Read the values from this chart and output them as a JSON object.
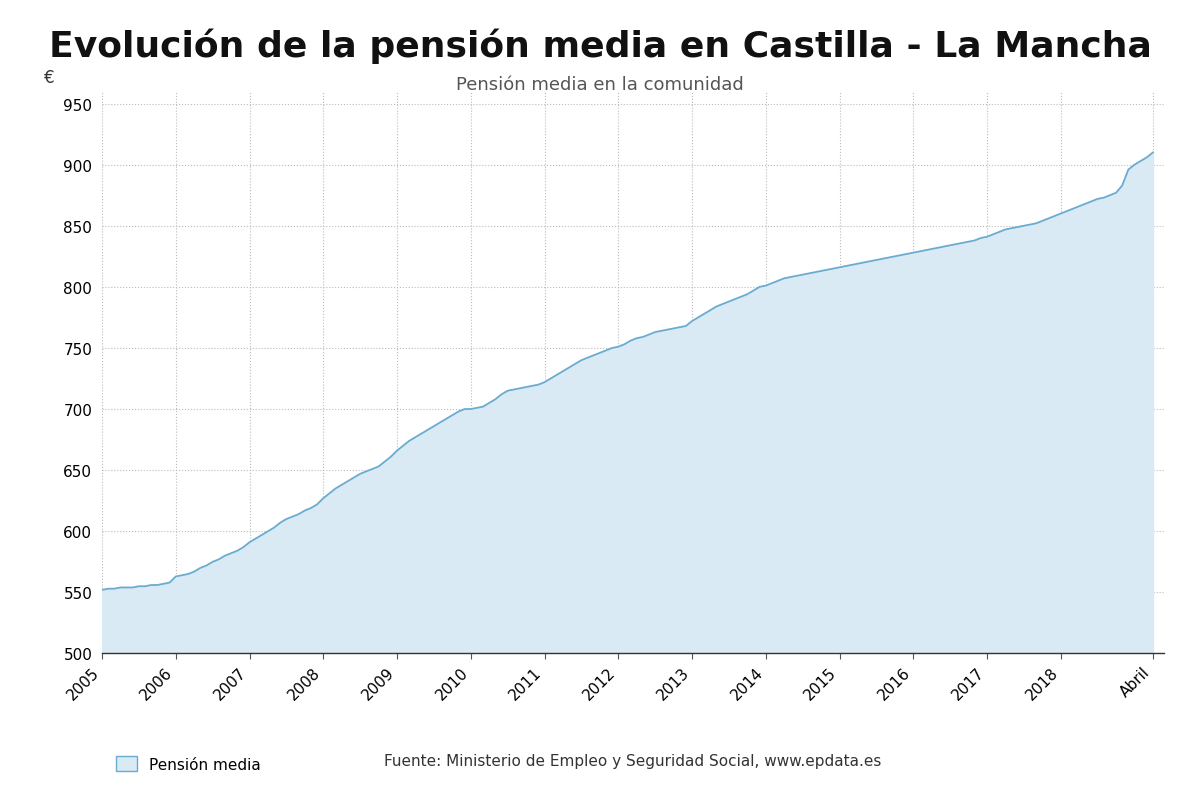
{
  "title": "Evolución de la pensión media en Castilla - La Mancha",
  "subtitle": "Pensión media en la comunidad",
  "ylabel": "€",
  "legend_label": "Pensión media",
  "source_text": "Fuente: Ministerio de Empleo y Seguridad Social, www.epdata.es",
  "ylim": [
    500,
    960
  ],
  "yticks": [
    500,
    550,
    600,
    650,
    700,
    750,
    800,
    850,
    900,
    950
  ],
  "line_color": "#6aacd0",
  "fill_color": "#daeaf5",
  "background_color": "#ffffff",
  "grid_color": "#bbbbbb",
  "title_fontsize": 26,
  "subtitle_fontsize": 13,
  "tick_fontsize": 11,
  "monthly_values": [
    552,
    553,
    553,
    554,
    554,
    554,
    555,
    555,
    556,
    556,
    557,
    558,
    563,
    564,
    565,
    567,
    570,
    572,
    575,
    577,
    580,
    582,
    584,
    587,
    591,
    594,
    597,
    600,
    603,
    607,
    610,
    612,
    614,
    617,
    619,
    622,
    627,
    631,
    635,
    638,
    641,
    644,
    647,
    649,
    651,
    653,
    657,
    661,
    666,
    670,
    674,
    677,
    680,
    683,
    686,
    689,
    692,
    695,
    698,
    700,
    700,
    701,
    702,
    705,
    708,
    712,
    715,
    716,
    717,
    718,
    719,
    720,
    722,
    725,
    728,
    731,
    734,
    737,
    740,
    742,
    744,
    746,
    748,
    750,
    751,
    753,
    756,
    758,
    759,
    761,
    763,
    764,
    765,
    766,
    767,
    768,
    772,
    775,
    778,
    781,
    784,
    786,
    788,
    790,
    792,
    794,
    797,
    800,
    801,
    803,
    805,
    807,
    808,
    809,
    810,
    811,
    812,
    813,
    814,
    815,
    816,
    817,
    818,
    819,
    820,
    821,
    822,
    823,
    824,
    825,
    826,
    827,
    828,
    829,
    830,
    831,
    832,
    833,
    834,
    835,
    836,
    837,
    838,
    840,
    841,
    843,
    845,
    847,
    848,
    849,
    850,
    851,
    852,
    854,
    856,
    858,
    860,
    862,
    864,
    866,
    868,
    870,
    872,
    873,
    875,
    877,
    883,
    896,
    900,
    903,
    906,
    910
  ]
}
